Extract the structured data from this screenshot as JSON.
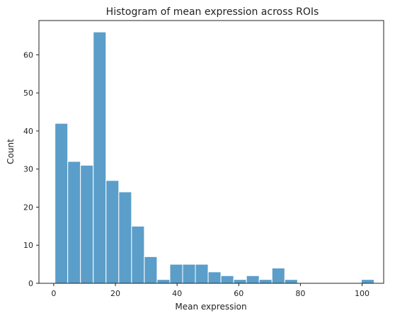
{
  "chart_data": {
    "type": "bar",
    "title": "Histogram of mean expression across ROIs",
    "xlabel": "Mean expression",
    "ylabel": "Count",
    "xlim": [
      -4.8,
      107.0
    ],
    "ylim": [
      0,
      69
    ],
    "bin_start": 0.4,
    "bin_width": 4.14,
    "counts": [
      42,
      32,
      31,
      66,
      27,
      24,
      15,
      7,
      1,
      5,
      5,
      5,
      3,
      2,
      1,
      2,
      1,
      4,
      1,
      0,
      0,
      0,
      0,
      0,
      1
    ],
    "x_ticks": [
      0,
      20,
      40,
      60,
      80,
      100
    ],
    "y_ticks": [
      0,
      10,
      20,
      30,
      40,
      50,
      60
    ],
    "bar_color": "#5b9ec9",
    "grid": false
  }
}
